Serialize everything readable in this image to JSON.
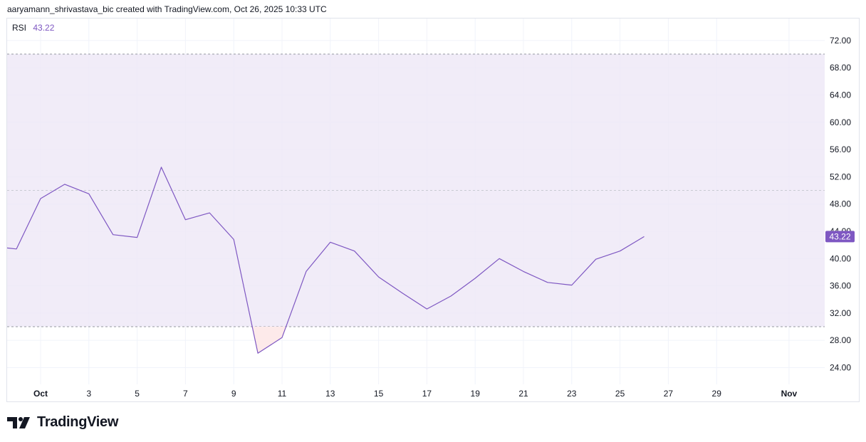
{
  "header": {
    "attribution": "aaryamann_shrivastava_bic created with TradingView.com, Oct 26, 2025 10:33 UTC"
  },
  "legend": {
    "indicator": "RSI",
    "value": "43.22"
  },
  "price_tag": "43.22",
  "brand": {
    "wordmark": "TradingView"
  },
  "colors": {
    "line": "#7e57c2",
    "band_fill": "#ede7f6",
    "oversold_fill": "#fdeaea",
    "band_line": "#9598a1",
    "grid": "#f0f3fa",
    "text": "#131722"
  },
  "chart_data": {
    "type": "line",
    "title": "",
    "xlabel": "",
    "ylabel": "",
    "ylim": [
      21.0,
      74.5
    ],
    "y_ticks": [
      "72.00",
      "68.00",
      "64.00",
      "60.00",
      "56.00",
      "52.00",
      "48.00",
      "44.00",
      "40.00",
      "36.00",
      "32.00",
      "28.00",
      "24.00"
    ],
    "x_ticks": [
      "Oct",
      "3",
      "5",
      "7",
      "9",
      "11",
      "13",
      "15",
      "17",
      "19",
      "21",
      "23",
      "25",
      "27",
      "29",
      "Nov"
    ],
    "x_tick_dates": [
      "2025-10-01",
      "2025-10-03",
      "2025-10-05",
      "2025-10-07",
      "2025-10-09",
      "2025-10-11",
      "2025-10-13",
      "2025-10-15",
      "2025-10-17",
      "2025-10-19",
      "2025-10-21",
      "2025-10-23",
      "2025-10-25",
      "2025-10-27",
      "2025-10-29",
      "2025-11-01"
    ],
    "bands": {
      "upper": 70,
      "middle": 50,
      "lower": 30
    },
    "grid": true,
    "series": [
      {
        "name": "RSI",
        "x": [
          "2025-09-29",
          "2025-09-30",
          "2025-10-01",
          "2025-10-02",
          "2025-10-03",
          "2025-10-04",
          "2025-10-05",
          "2025-10-06",
          "2025-10-07",
          "2025-10-08",
          "2025-10-09",
          "2025-10-10",
          "2025-10-11",
          "2025-10-12",
          "2025-10-13",
          "2025-10-14",
          "2025-10-15",
          "2025-10-16",
          "2025-10-17",
          "2025-10-18",
          "2025-10-19",
          "2025-10-20",
          "2025-10-21",
          "2025-10-22",
          "2025-10-23",
          "2025-10-24",
          "2025-10-25",
          "2025-10-26"
        ],
        "values": [
          41.8,
          41.4,
          48.8,
          50.9,
          49.5,
          43.5,
          43.1,
          53.4,
          45.7,
          46.7,
          42.8,
          26.1,
          28.4,
          38.1,
          42.4,
          41.1,
          37.3,
          34.9,
          32.6,
          34.5,
          37.1,
          40.0,
          38.1,
          36.5,
          36.1,
          39.9,
          41.1,
          43.22
        ]
      }
    ]
  }
}
